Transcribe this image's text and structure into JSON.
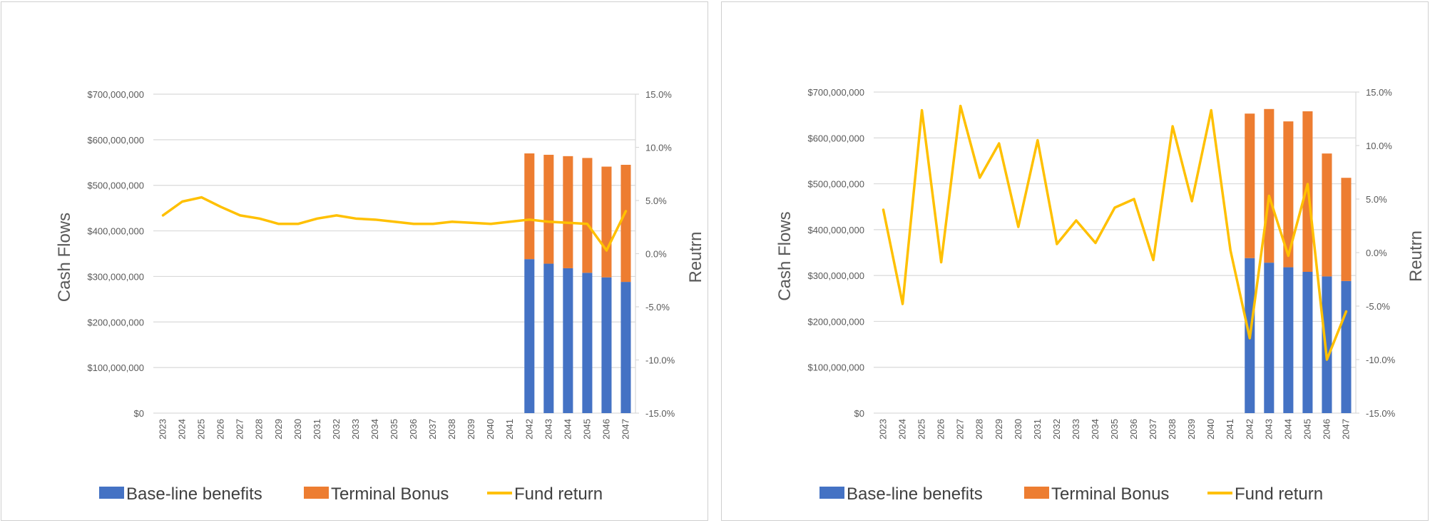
{
  "colors": {
    "baseline": "#4472C4",
    "terminal": "#ED7D31",
    "fund": "#FFC000",
    "grid": "#D9D9D9",
    "text": "#595959"
  },
  "chart_data": [
    {
      "type": "bar",
      "stacked": true,
      "categories": [
        "2023",
        "2024",
        "2025",
        "2026",
        "2027",
        "2028",
        "2029",
        "2030",
        "2031",
        "2032",
        "2033",
        "2034",
        "2035",
        "2036",
        "2037",
        "2038",
        "2039",
        "2040",
        "2041",
        "2042",
        "2043",
        "2044",
        "2045",
        "2046",
        "2047"
      ],
      "series": [
        {
          "name": "Base-line benefits",
          "kind": "bar",
          "axis": "left",
          "values": [
            0,
            0,
            0,
            0,
            0,
            0,
            0,
            0,
            0,
            0,
            0,
            0,
            0,
            0,
            0,
            0,
            0,
            0,
            0,
            338000000,
            328000000,
            318000000,
            308000000,
            298000000,
            288000000
          ]
        },
        {
          "name": "Terminal Bonus",
          "kind": "bar",
          "axis": "left",
          "values": [
            0,
            0,
            0,
            0,
            0,
            0,
            0,
            0,
            0,
            0,
            0,
            0,
            0,
            0,
            0,
            0,
            0,
            0,
            0,
            232000000,
            239000000,
            246000000,
            252000000,
            243000000,
            257000000
          ]
        },
        {
          "name": "Fund return",
          "kind": "line",
          "axis": "right",
          "values": [
            3.6,
            4.9,
            5.3,
            4.4,
            3.6,
            3.3,
            2.8,
            2.8,
            3.3,
            3.6,
            3.3,
            3.2,
            3.0,
            2.8,
            2.8,
            3.0,
            2.9,
            2.8,
            3.0,
            3.2,
            3.0,
            2.9,
            2.8,
            0.3,
            4.0
          ]
        }
      ],
      "ylabel": "Cash Flows",
      "y2label": "Reutrn",
      "ylim": [
        0,
        700000000
      ],
      "y2lim": [
        -15,
        15
      ],
      "yticks": [
        "$0",
        "$100,000,000",
        "$200,000,000",
        "$300,000,000",
        "$400,000,000",
        "$500,000,000",
        "$600,000,000",
        "$700,000,000"
      ],
      "y2ticks": [
        "-15.0%",
        "-10.0%",
        "-5.0%",
        "0.0%",
        "5.0%",
        "10.0%",
        "15.0%"
      ],
      "grid": true,
      "legend": "bottom"
    },
    {
      "type": "bar",
      "stacked": true,
      "categories": [
        "2023",
        "2024",
        "2025",
        "2026",
        "2027",
        "2028",
        "2029",
        "2030",
        "2031",
        "2032",
        "2033",
        "2034",
        "2035",
        "2036",
        "2037",
        "2038",
        "2039",
        "2040",
        "2041",
        "2042",
        "2043",
        "2044",
        "2045",
        "2046",
        "2047"
      ],
      "series": [
        {
          "name": "Base-line benefits",
          "kind": "bar",
          "axis": "left",
          "values": [
            0,
            0,
            0,
            0,
            0,
            0,
            0,
            0,
            0,
            0,
            0,
            0,
            0,
            0,
            0,
            0,
            0,
            0,
            0,
            338000000,
            328000000,
            318000000,
            308000000,
            298000000,
            288000000
          ]
        },
        {
          "name": "Terminal Bonus",
          "kind": "bar",
          "axis": "left",
          "values": [
            0,
            0,
            0,
            0,
            0,
            0,
            0,
            0,
            0,
            0,
            0,
            0,
            0,
            0,
            0,
            0,
            0,
            0,
            0,
            315000000,
            335000000,
            318000000,
            350000000,
            268000000,
            225000000
          ]
        },
        {
          "name": "Fund return",
          "kind": "line",
          "axis": "right",
          "values": [
            4.0,
            -4.8,
            13.3,
            -0.9,
            13.7,
            7.0,
            10.2,
            2.4,
            10.5,
            0.8,
            3.0,
            0.9,
            4.2,
            5.0,
            -0.7,
            11.8,
            4.8,
            13.3,
            0.2,
            -8.0,
            5.3,
            -0.3,
            6.4,
            -10.0,
            -5.5
          ]
        }
      ],
      "ylabel": "Cash Flows",
      "y2label": "Reutrn",
      "ylim": [
        0,
        700000000
      ],
      "y2lim": [
        -15,
        15
      ],
      "yticks": [
        "$0",
        "$100,000,000",
        "$200,000,000",
        "$300,000,000",
        "$400,000,000",
        "$500,000,000",
        "$600,000,000",
        "$700,000,000"
      ],
      "y2ticks": [
        "-15.0%",
        "-10.0%",
        "-5.0%",
        "0.0%",
        "5.0%",
        "10.0%",
        "15.0%"
      ],
      "grid": true,
      "legend": "bottom"
    }
  ]
}
